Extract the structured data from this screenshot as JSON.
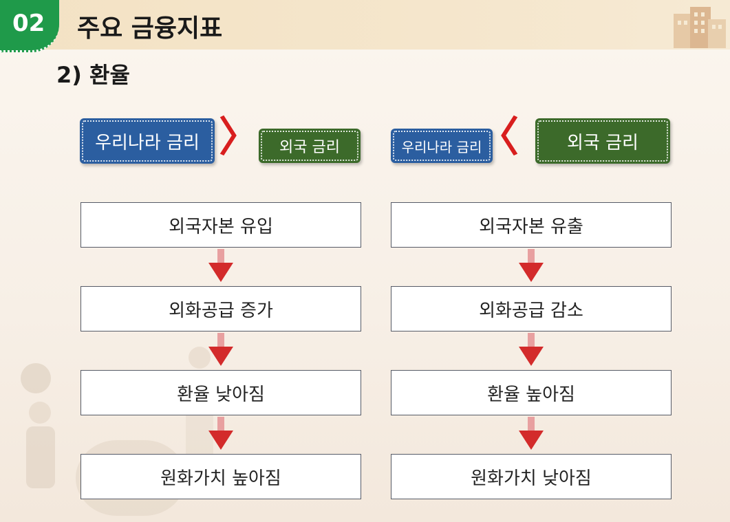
{
  "header": {
    "number": "02",
    "title": "주요 금융지표"
  },
  "section": {
    "subtitle": "2) 환율"
  },
  "left": {
    "domestic_rate": "우리나라 금리",
    "comparison": "〉",
    "foreign_rate": "외국 금리",
    "steps": [
      "외국자본 유입",
      "외화공급 증가",
      "환율 낮아짐",
      "원화가치 높아짐"
    ]
  },
  "right": {
    "domestic_rate": "우리나라 금리",
    "comparison": "〈",
    "foreign_rate": "외국 금리",
    "steps": [
      "외국자본 유출",
      "외화공급 감소",
      "환율 높아짐",
      "원화가치 낮아짐"
    ]
  },
  "colors": {
    "badge": "#1f9a4a",
    "domestic_tag": "#2b5ea0",
    "foreign_tag": "#3c6a2a",
    "arrow": "#d32b2b",
    "comparison": "#d81e1e"
  },
  "icons": [
    "building-icon",
    "down-arrow-icon"
  ]
}
